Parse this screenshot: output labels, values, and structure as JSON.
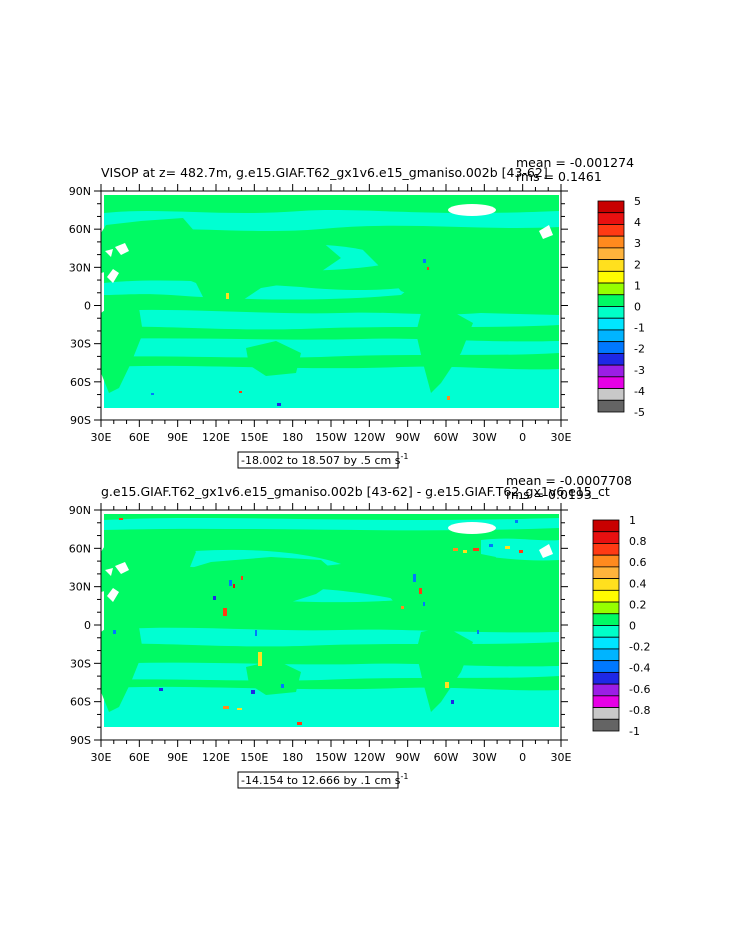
{
  "chart_data": [
    {
      "type": "heatmap",
      "title": "VISOP at z= 482.7m, g.e15.GIAF.T62_gx1v6.e15_gmaniso.002b [43-62]",
      "stats": {
        "mean": "mean = -0.001274",
        "rms": "rms = 0.1461"
      },
      "range_label": "-18.002 to 18.507 by .5 cm s",
      "range_units_sup": "-1",
      "xlabel": "",
      "ylabel": "",
      "x_ticks": [
        "30E",
        "60E",
        "90E",
        "120E",
        "150E",
        "180",
        "150W",
        "120W",
        "90W",
        "60W",
        "30W",
        "0",
        "30E"
      ],
      "y_ticks": [
        "90N",
        "60N",
        "30N",
        "0",
        "30S",
        "60S",
        "90S"
      ],
      "colorbar_labels": [
        "5",
        "4",
        "3",
        "2",
        "1",
        "0",
        "-1",
        "-2",
        "-3",
        "-4",
        "-5"
      ],
      "colorbar_colors": [
        "#c80000",
        "#e81010",
        "#ff3a14",
        "#ff8a1e",
        "#ffb43c",
        "#ffe01e",
        "#fffc00",
        "#96ff00",
        "#00fa64",
        "#00ffc8",
        "#00e6ff",
        "#00b4ff",
        "#0078ff",
        "#1e28e6",
        "#9b1ee6",
        "#e600e6",
        "#c8c8c8",
        "#646464"
      ],
      "field_colors": {
        "positive_small": "#00fa64",
        "negative_small": "#00ffd2"
      }
    },
    {
      "type": "heatmap",
      "title": "g.e15.GIAF.T62_gx1v6.e15_gmaniso.002b [43-62] - g.e15.GIAF.T62_gx1v6.e15_ct",
      "stats": {
        "mean": "mean = -0.0007708",
        "rms": "rms = 0.0193"
      },
      "range_label": "-14.154 to 12.666 by .1 cm s",
      "range_units_sup": "-1",
      "xlabel": "",
      "ylabel": "",
      "x_ticks": [
        "30E",
        "60E",
        "90E",
        "120E",
        "150E",
        "180",
        "150W",
        "120W",
        "90W",
        "60W",
        "30W",
        "0",
        "30E"
      ],
      "y_ticks": [
        "90N",
        "60N",
        "30N",
        "0",
        "30S",
        "60S",
        "90S"
      ],
      "colorbar_labels": [
        "1",
        "0.8",
        "0.6",
        "0.4",
        "0.2",
        "0",
        "-0.2",
        "-0.4",
        "-0.6",
        "-0.8",
        "-1"
      ],
      "colorbar_colors": [
        "#c80000",
        "#e81010",
        "#ff3a14",
        "#ff8a1e",
        "#ffb43c",
        "#ffe01e",
        "#fffc00",
        "#96ff00",
        "#00fa64",
        "#00ffc8",
        "#00e6ff",
        "#00b4ff",
        "#0078ff",
        "#1e28e6",
        "#9b1ee6",
        "#e600e6",
        "#c8c8c8",
        "#646464"
      ],
      "field_colors": {
        "positive_small": "#00fa64",
        "negative_small": "#00ffd2"
      }
    }
  ]
}
